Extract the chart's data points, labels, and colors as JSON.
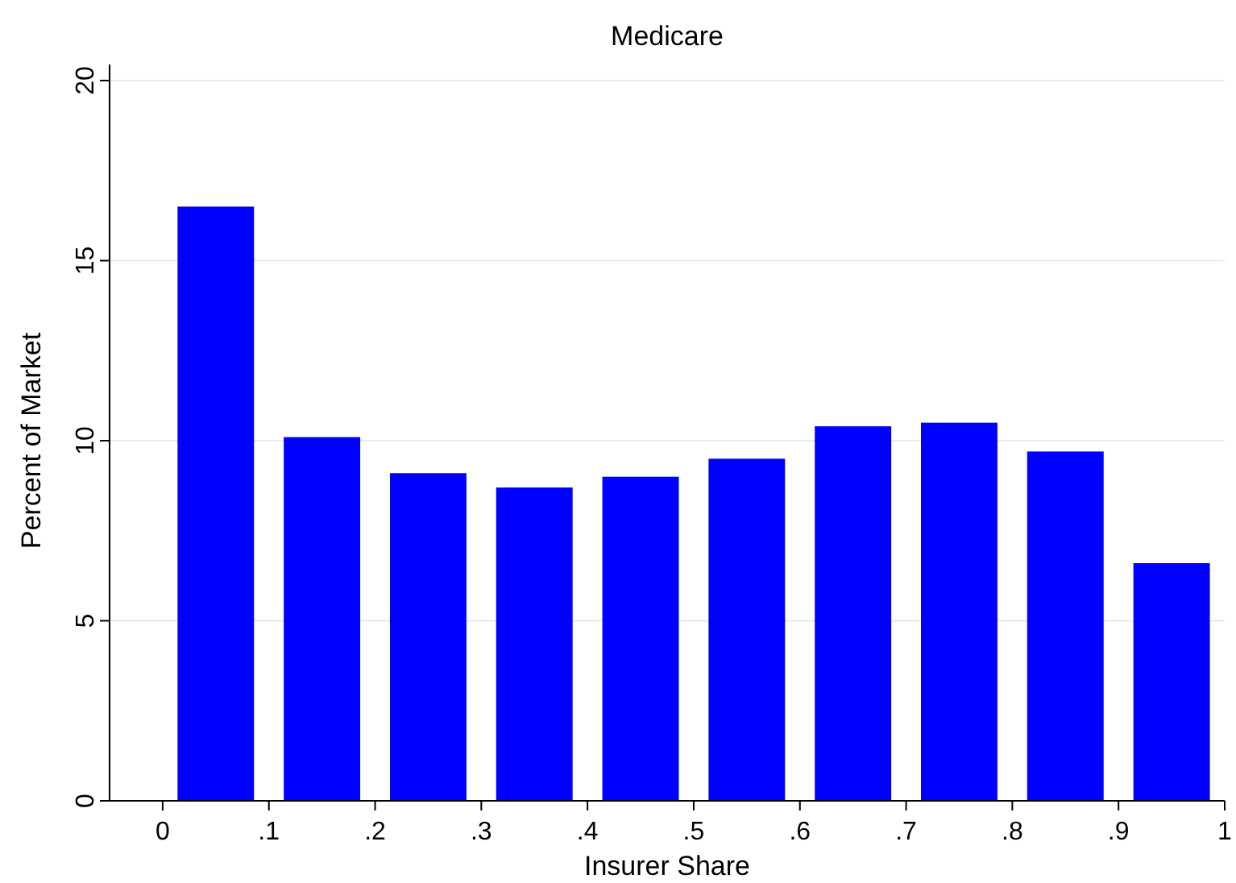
{
  "chart_data": {
    "type": "histogram",
    "title": "Medicare",
    "xlabel": "Insurer Share",
    "ylabel": "Percent of Market",
    "bins": [
      0,
      0.1,
      0.2,
      0.3,
      0.4,
      0.5,
      0.6,
      0.7,
      0.8,
      0.9,
      1
    ],
    "values": [
      16.5,
      10.1,
      9.1,
      8.7,
      9.0,
      9.5,
      10.4,
      10.5,
      9.7,
      6.6
    ],
    "color": "#0000ff",
    "xlim": [
      -0.05,
      1
    ],
    "xticks": [
      0,
      {
        "value": 0.1,
        "label": ".1"
      },
      {
        "value": 0.2,
        "label": ".2"
      },
      {
        "value": 0.3,
        "label": ".3"
      },
      {
        "value": 0.4,
        "label": ".4"
      },
      {
        "value": 0.5,
        "label": ".5"
      },
      {
        "value": 0.6,
        "label": ".6"
      },
      {
        "value": 0.7,
        "label": ".7"
      },
      {
        "value": 0.8,
        "label": ".8"
      },
      {
        "value": 0.9,
        "label": ".9"
      },
      1
    ],
    "ylim": [
      0,
      20
    ],
    "yticks": [
      0,
      5,
      10,
      15,
      20
    ],
    "grid": "y"
  }
}
